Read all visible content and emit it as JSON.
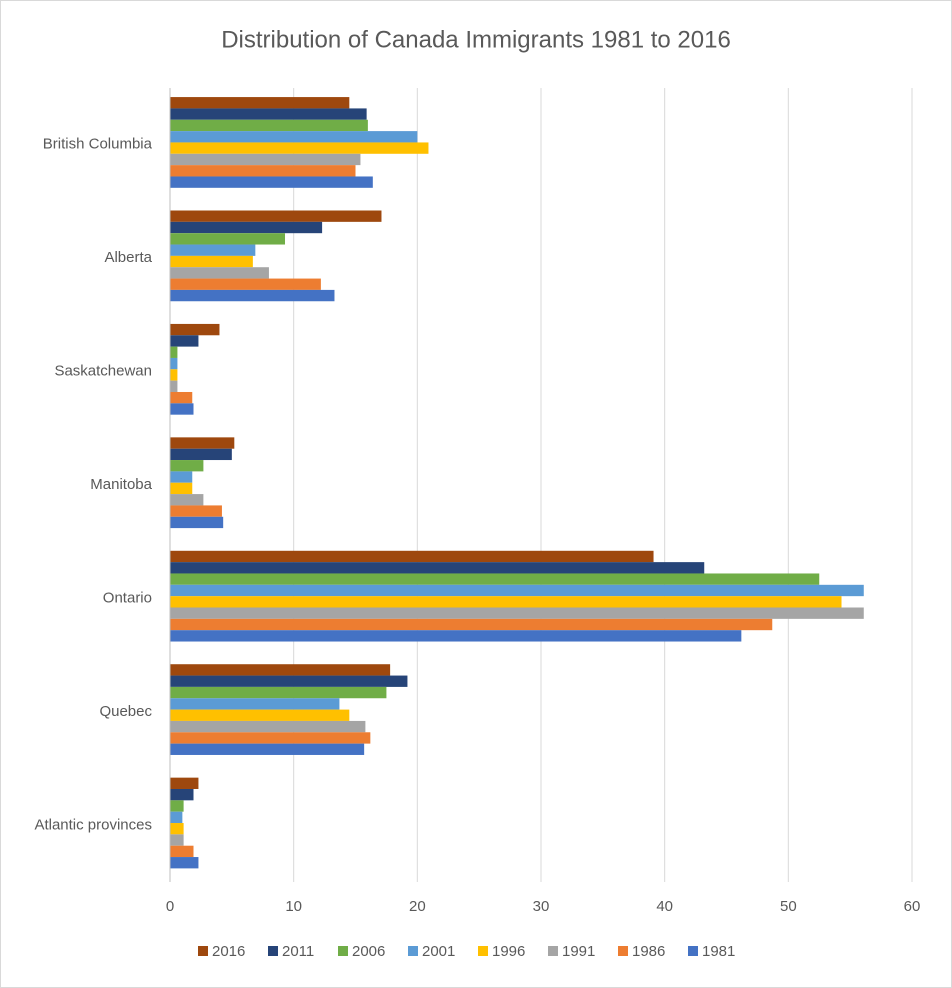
{
  "chart_data": {
    "type": "hbar",
    "title": "Distribution of Canada Immigrants 1981 to 2016",
    "categories": [
      "British Columbia",
      "Alberta",
      "Saskatchewan",
      "Manitoba",
      "Ontario",
      "Quebec",
      "Atlantic provinces"
    ],
    "series": [
      {
        "name": "2016",
        "color": "#9e480e",
        "values": [
          14.5,
          17.1,
          4.0,
          5.2,
          39.1,
          17.8,
          2.3
        ]
      },
      {
        "name": "2011",
        "color": "#264478",
        "values": [
          15.9,
          12.3,
          2.3,
          5.0,
          43.2,
          19.2,
          1.9
        ]
      },
      {
        "name": "2006",
        "color": "#70ad47",
        "values": [
          16.0,
          9.3,
          0.6,
          2.7,
          52.5,
          17.5,
          1.1
        ]
      },
      {
        "name": "2001",
        "color": "#5b9bd5",
        "values": [
          20.0,
          6.9,
          0.6,
          1.8,
          56.1,
          13.7,
          1.0
        ]
      },
      {
        "name": "1996",
        "color": "#ffc000",
        "values": [
          20.9,
          6.7,
          0.6,
          1.8,
          54.3,
          14.5,
          1.1
        ]
      },
      {
        "name": "1991",
        "color": "#a5a5a5",
        "values": [
          15.4,
          8.0,
          0.6,
          2.7,
          56.1,
          15.8,
          1.1
        ]
      },
      {
        "name": "1986",
        "color": "#ed7d31",
        "values": [
          15.0,
          12.2,
          1.8,
          4.2,
          48.7,
          16.2,
          1.9
        ]
      },
      {
        "name": "1981",
        "color": "#4472c4",
        "values": [
          16.4,
          13.3,
          1.9,
          4.3,
          46.2,
          15.7,
          2.3
        ]
      }
    ],
    "xlim": [
      0,
      60
    ],
    "xticks": [
      0,
      10,
      20,
      30,
      40,
      50,
      60
    ],
    "grid": true,
    "legend": "bottom"
  }
}
